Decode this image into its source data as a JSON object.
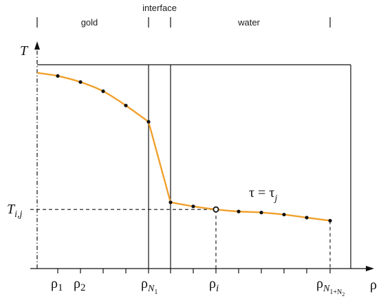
{
  "regions": {
    "gold": "gold",
    "interface": "interface",
    "water": "water"
  },
  "axes": {
    "y_symbol": "T",
    "x_symbol": "ρ",
    "y_marker_base": "T",
    "y_marker_sub": "i,j"
  },
  "annotation": {
    "lhs": "τ",
    "eq": " = ",
    "rhs_base": "τ",
    "rhs_sub": "j"
  },
  "ticks": {
    "rho1": {
      "base": "ρ",
      "sub": "1"
    },
    "rho2": {
      "base": "ρ",
      "sub": "2"
    },
    "rhoN1": {
      "base": "ρ",
      "sub": "N",
      "subsub": "1"
    },
    "rhoi": {
      "base": "ρ",
      "sub": "i"
    },
    "rhoN1N2": {
      "base": "ρ",
      "sub": "N",
      "subsub": "1+N",
      "subsub2": "2"
    }
  },
  "colors": {
    "curve": "#F0A02C",
    "ink": "#111111"
  },
  "profile": {
    "gold_points": [
      0.96,
      0.945,
      0.915,
      0.87,
      0.8,
      0.72
    ],
    "water_points": [
      0.325,
      0.305,
      0.29,
      0.28,
      0.275,
      0.265,
      0.25,
      0.235
    ],
    "highlight_index": 2
  }
}
